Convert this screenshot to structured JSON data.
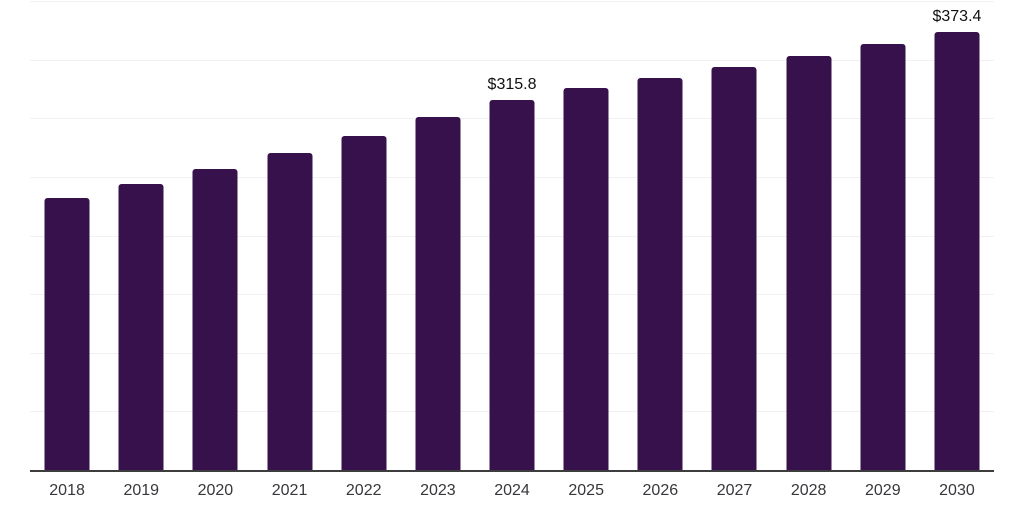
{
  "chart_data": {
    "type": "bar",
    "title": "",
    "xlabel": "",
    "ylabel": "",
    "categories": [
      "2018",
      "2019",
      "2020",
      "2021",
      "2022",
      "2023",
      "2024",
      "2025",
      "2026",
      "2027",
      "2028",
      "2029",
      "2030"
    ],
    "values": [
      232.4,
      244.3,
      257.0,
      270.5,
      285.2,
      300.9,
      315.8,
      325.6,
      334.4,
      343.8,
      353.4,
      363.7,
      373.4
    ],
    "data_labels": [
      {
        "index": 6,
        "category": "2024",
        "text": "$315.8"
      },
      {
        "index": 12,
        "category": "2030",
        "text": "$373.4"
      }
    ],
    "ylim": [
      0,
      400
    ],
    "grid_step": 50,
    "grid": true,
    "legend": "none"
  },
  "colors": {
    "bar": "#36114B",
    "gridline": "#F1F1F3",
    "axis_line": "#3D3D3D",
    "data_label_text": "#111111",
    "tick_label_text": "#37373C",
    "background": "#FFFFFF"
  }
}
